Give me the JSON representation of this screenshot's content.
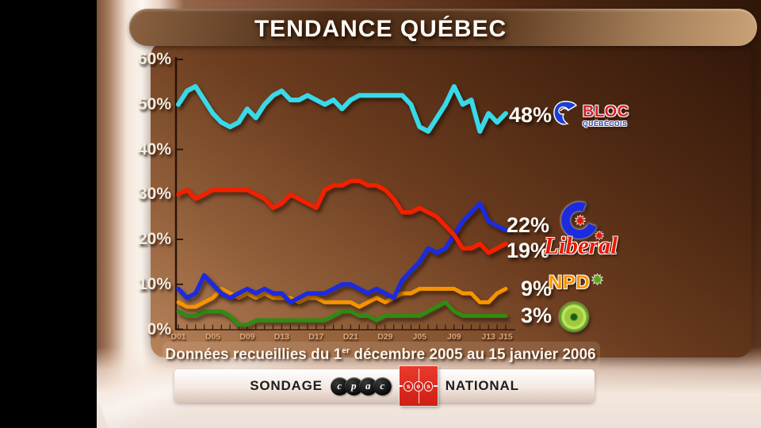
{
  "title": "TENDANCE QUÉBEC",
  "footnote": {
    "pre": "Données recueillies du 1",
    "sup": "er",
    "post": " décembre 2005 au 15 janvier 2006"
  },
  "source_bar": {
    "left": "SONDAGE",
    "right": "NATIONAL",
    "cpac_letters": [
      "c",
      "p",
      "a",
      "c"
    ],
    "ses_letters": [
      "s",
      "e",
      "s"
    ]
  },
  "logos": {
    "bloc": {
      "line1": "BLOC",
      "line2": "QUÉBÉCOIS"
    },
    "liberal": {
      "script": "Liberal"
    },
    "npd": {
      "text": "NPD"
    }
  },
  "chart_data": {
    "type": "line",
    "title": "TENDANCE QUÉBEC",
    "ylabel": "%",
    "ylim": [
      0,
      60
    ],
    "grid": false,
    "y_tick_labels": [
      "60%",
      "50%",
      "40%",
      "30%",
      "20%",
      "10%",
      "0%"
    ],
    "x_tick_labels": [
      "D01",
      "D05",
      "D09",
      "D13",
      "D17",
      "D21",
      "D29",
      "J05",
      "J09",
      "J13",
      "J15"
    ],
    "x_tick_indices": [
      0,
      4,
      8,
      12,
      16,
      20,
      24,
      28,
      32,
      36,
      38
    ],
    "n_points": 39,
    "series": [
      {
        "name": "Bloc Québécois",
        "color": "#38d9e8",
        "end_label": "48%",
        "values": [
          50,
          53,
          54,
          51,
          48,
          46,
          45,
          46,
          49,
          47,
          50,
          52,
          53,
          51,
          51,
          52,
          51,
          50,
          51,
          49,
          51,
          52,
          52,
          52,
          52,
          52,
          52,
          50,
          45,
          44,
          47,
          50,
          54,
          50,
          51,
          44,
          48,
          46,
          48
        ]
      },
      {
        "name": "Parti conservateur",
        "color": "#1b2be0",
        "end_label": "22%",
        "values": [
          9,
          7,
          8,
          12,
          10,
          8,
          7,
          8,
          9,
          8,
          9,
          8,
          8,
          6,
          7,
          8,
          8,
          8,
          9,
          10,
          10,
          9,
          8,
          9,
          8,
          7,
          11,
          13,
          15,
          18,
          17,
          18,
          21,
          24,
          26,
          28,
          24,
          23,
          22
        ]
      },
      {
        "name": "Parti libéral",
        "color": "#f32000",
        "end_label": "19%",
        "values": [
          30,
          31,
          29,
          30,
          31,
          31,
          31,
          31,
          31,
          30,
          29,
          27,
          28,
          30,
          29,
          28,
          27,
          31,
          32,
          32,
          33,
          33,
          32,
          32,
          31,
          29,
          26,
          26,
          27,
          26,
          25,
          23,
          21,
          18,
          18,
          19,
          17,
          18,
          19
        ]
      },
      {
        "name": "NPD",
        "color": "#f79400",
        "end_label": "9%",
        "values": [
          6,
          5,
          5,
          6,
          7,
          9,
          8,
          7,
          8,
          7,
          8,
          7,
          7,
          7,
          6,
          7,
          7,
          6,
          6,
          6,
          6,
          5,
          6,
          7,
          6,
          7,
          8,
          8,
          9,
          9,
          9,
          9,
          9,
          8,
          8,
          6,
          6,
          8,
          9
        ]
      },
      {
        "name": "Parti vert",
        "color": "#2f8c12",
        "end_label": "3%",
        "values": [
          4,
          3,
          3,
          4,
          4,
          4,
          3,
          1,
          1,
          2,
          2,
          2,
          2,
          2,
          2,
          2,
          2,
          2,
          3,
          4,
          4,
          3,
          3,
          2,
          3,
          3,
          3,
          3,
          3,
          4,
          5,
          6,
          4,
          3,
          3,
          3,
          3,
          3,
          3
        ]
      }
    ]
  }
}
